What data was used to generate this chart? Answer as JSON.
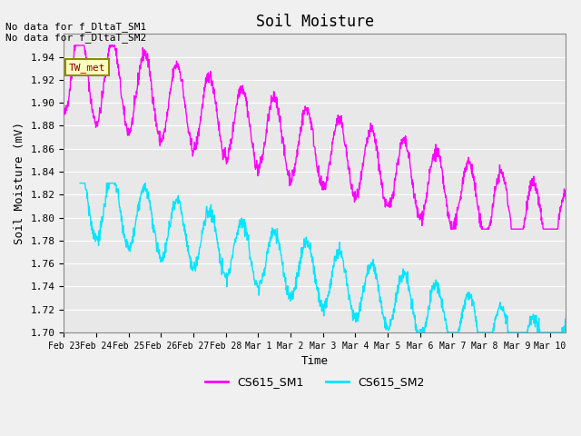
{
  "title": "Soil Moisture",
  "xlabel": "Time",
  "ylabel": "Soil Moisture (mV)",
  "ylim": [
    1.7,
    1.96
  ],
  "yticks": [
    1.7,
    1.72,
    1.74,
    1.76,
    1.78,
    1.8,
    1.82,
    1.84,
    1.86,
    1.88,
    1.9,
    1.92,
    1.94
  ],
  "annotation_text": "No data for f_DltaT_SM1\nNo data for f_DltaT_SM2",
  "legend_box_label": "TW_met",
  "legend_box_color": "#ffffc0",
  "legend_box_border": "#8B8B00",
  "sm1_color": "#ff00ff",
  "sm2_color": "#00e5ff",
  "sm1_label": "CS615_SM1",
  "sm2_label": "CS615_SM2",
  "background_color": "#e8e8e8",
  "grid_color": "#ffffff",
  "xtick_labels": [
    "Feb 23",
    "Feb 24",
    "Feb 25",
    "Feb 26",
    "Feb 27",
    "Feb 28",
    "Mar 1",
    "Mar 2",
    "Mar 3",
    "Mar 4",
    "Mar 5",
    "Mar 6",
    "Mar 7",
    "Mar 8",
    "Mar 9",
    "Mar 10"
  ],
  "font_family": "monospace"
}
